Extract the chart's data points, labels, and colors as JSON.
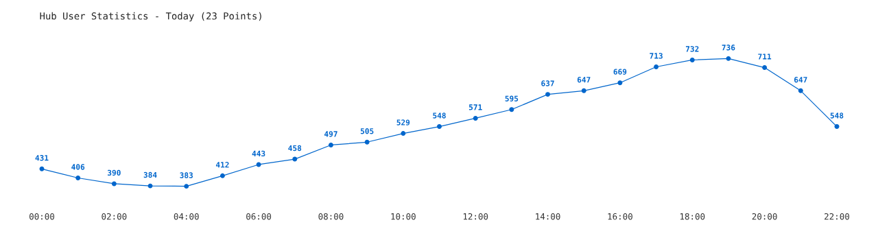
{
  "chart_data": {
    "type": "line",
    "title": "Hub User Statistics - Today (23 Points)",
    "x": [
      0,
      1,
      2,
      3,
      4,
      5,
      6,
      7,
      8,
      9,
      10,
      11,
      12,
      13,
      14,
      15,
      16,
      17,
      18,
      19,
      20,
      21,
      22
    ],
    "series": [
      {
        "color": "#0066cc",
        "values": [
          431,
          406,
          390,
          384,
          383,
          412,
          443,
          458,
          497,
          505,
          529,
          548,
          571,
          595,
          637,
          647,
          669,
          713,
          732,
          736,
          711,
          647,
          548
        ]
      }
    ],
    "xticks": [
      {
        "value": 0,
        "label": "00:00"
      },
      {
        "value": 2,
        "label": "02:00"
      },
      {
        "value": 4,
        "label": "04:00"
      },
      {
        "value": 6,
        "label": "06:00"
      },
      {
        "value": 8,
        "label": "08:00"
      },
      {
        "value": 10,
        "label": "10:00"
      },
      {
        "value": 12,
        "label": "12:00"
      },
      {
        "value": 14,
        "label": "14:00"
      },
      {
        "value": 16,
        "label": "16:00"
      },
      {
        "value": 18,
        "label": "18:00"
      },
      {
        "value": 20,
        "label": "20:00"
      },
      {
        "value": 22,
        "label": "22:00"
      }
    ],
    "xlim": [
      0,
      22
    ],
    "tick_labels": "x",
    "data_labels": true,
    "grid": false,
    "legend": false,
    "marker": "circle",
    "line_style": "solid"
  }
}
